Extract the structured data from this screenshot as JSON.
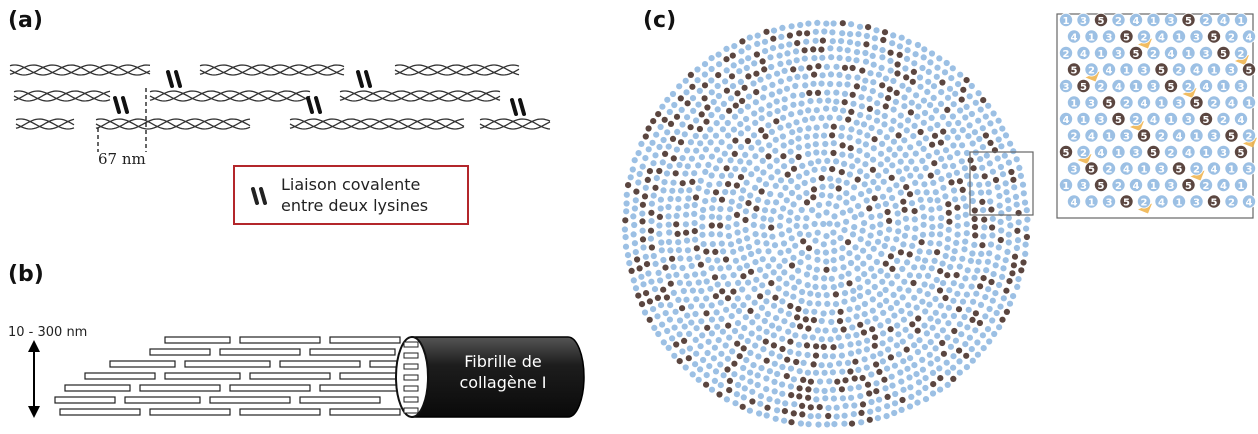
{
  "panels": {
    "a": {
      "label": "(a)",
      "spacing_label": "67 nm",
      "legend": {
        "text_line1": "Liaison covalente",
        "text_line2": "entre deux lysines",
        "border_color": "#b3262b",
        "icon": "crosslink-icon"
      }
    },
    "b": {
      "label": "(b)",
      "height_label": "10 - 300 nm",
      "fibril_line1": "Fibrille de",
      "fibril_line2": "collagène I",
      "fibril_color": "#222222"
    },
    "c": {
      "label": "(c)",
      "colors": {
        "light_molecule": "#9cc0e4",
        "dark_molecule": "#5b4640",
        "crosslink": "#f0b550"
      },
      "zoom_labels": [
        "1",
        "2",
        "3",
        "4",
        "5"
      ]
    }
  }
}
